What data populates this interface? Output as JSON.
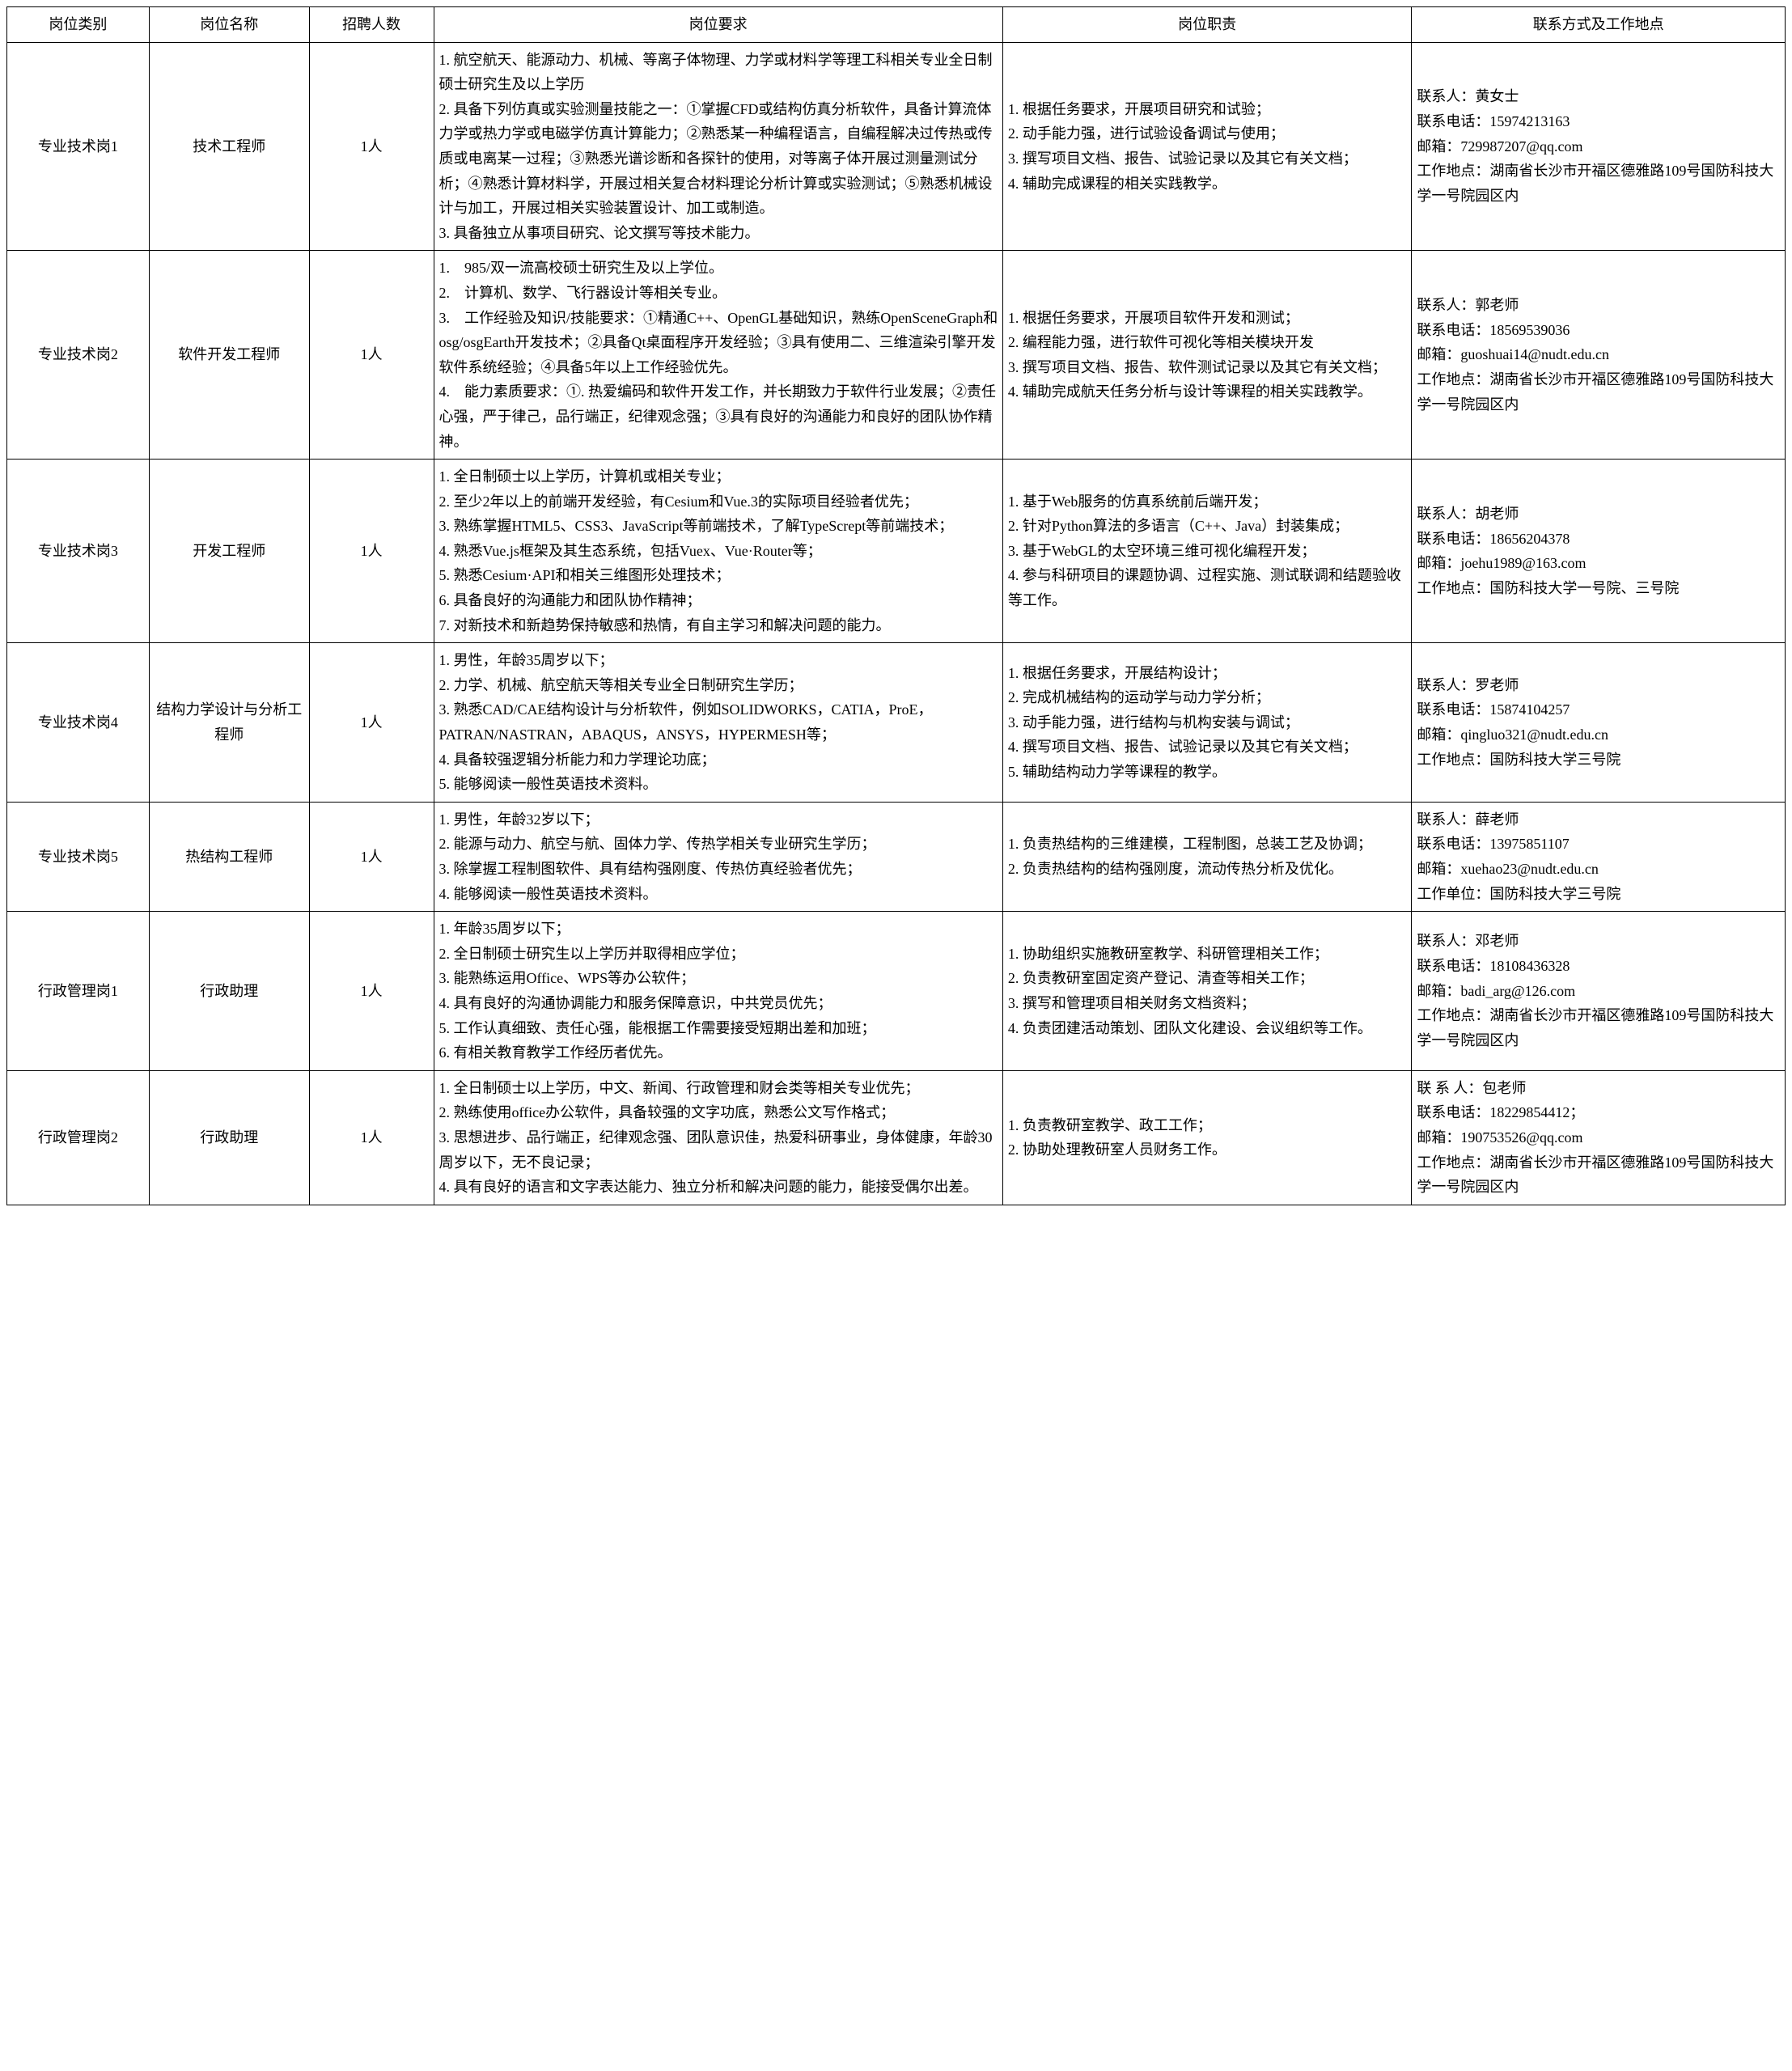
{
  "headers": [
    "岗位类别",
    "岗位名称",
    "招聘人数",
    "岗位要求",
    "岗位职责",
    "联系方式及工作地点"
  ],
  "rows": [
    {
      "category": "专业技术岗1",
      "name": "技术工程师",
      "count": "1人",
      "req": [
        "1. 航空航天、能源动力、机械、等离子体物理、力学或材料学等理工科相关专业全日制硕士研究生及以上学历",
        "2. 具备下列仿真或实验测量技能之一：①掌握CFD或结构仿真分析软件，具备计算流体力学或热力学或电磁学仿真计算能力；②熟悉某一种编程语言，自编程解决过传热或传质或电离某一过程；③熟悉光谱诊断和各探针的使用，对等离子体开展过测量测试分析；④熟悉计算材料学，开展过相关复合材料理论分析计算或实验测试；⑤熟悉机械设计与加工，开展过相关实验装置设计、加工或制造。",
        "3. 具备独立从事项目研究、论文撰写等技术能力。"
      ],
      "duty": [
        "1. 根据任务要求，开展项目研究和试验；",
        "2. 动手能力强，进行试验设备调试与使用；",
        "3. 撰写项目文档、报告、试验记录以及其它有关文档；",
        "4. 辅助完成课程的相关实践教学。"
      ],
      "contact": [
        "联系人：黄女士",
        "联系电话：15974213163",
        "邮箱：729987207@qq.com",
        "工作地点：湖南省长沙市开福区德雅路109号国防科技大学一号院园区内"
      ]
    },
    {
      "category": "专业技术岗2",
      "name": "软件开发工程师",
      "count": "1人",
      "req": [
        "1.　985/双一流高校硕士研究生及以上学位。",
        "2.　计算机、数学、飞行器设计等相关专业。",
        "3.　工作经验及知识/技能要求：①精通C++、OpenGL基础知识，熟练OpenSceneGraph和osg/osgEarth开发技术；②具备Qt桌面程序开发经验；③具有使用二、三维渲染引擎开发软件系统经验；④具备5年以上工作经验优先。",
        "4.　能力素质要求：①. 热爱编码和软件开发工作，并长期致力于软件行业发展；②责任心强，严于律己，品行端正，纪律观念强；③具有良好的沟通能力和良好的团队协作精神。"
      ],
      "duty": [
        "1. 根据任务要求，开展项目软件开发和测试；",
        "2. 编程能力强，进行软件可视化等相关模块开发",
        "3. 撰写项目文档、报告、软件测试记录以及其它有关文档；",
        "4. 辅助完成航天任务分析与设计等课程的相关实践教学。"
      ],
      "contact": [
        "联系人：郭老师",
        "联系电话：18569539036",
        "邮箱：guoshuai14@nudt.edu.cn",
        "工作地点：湖南省长沙市开福区德雅路109号国防科技大学一号院园区内"
      ]
    },
    {
      "category": "专业技术岗3",
      "name": "开发工程师",
      "count": "1人",
      "req": [
        "1. 全日制硕士以上学历，计算机或相关专业；",
        "2. 至少2年以上的前端开发经验，有Cesium和Vue.3的实际项目经验者优先；",
        "3. 熟练掌握HTML5、CSS3、JavaScript等前端技术，了解TypeScrept等前端技术；",
        "4. 熟悉Vue.js框架及其生态系统，包括Vuex、Vue·Router等；",
        "5. 熟悉Cesium·API和相关三维图形处理技术；",
        "6. 具备良好的沟通能力和团队协作精神；",
        "7. 对新技术和新趋势保持敏感和热情，有自主学习和解决问题的能力。"
      ],
      "duty": [
        "1. 基于Web服务的仿真系统前后端开发；",
        "2. 针对Python算法的多语言（C++、Java）封装集成；",
        "3. 基于WebGL的太空环境三维可视化编程开发；",
        "4. 参与科研项目的课题协调、过程实施、测试联调和结题验收等工作。"
      ],
      "contact": [
        "联系人：胡老师",
        "联系电话：18656204378",
        "邮箱：joehu1989@163.com",
        "工作地点：国防科技大学一号院、三号院"
      ]
    },
    {
      "category": "专业技术岗4",
      "name": "结构力学设计与分析工程师",
      "count": "1人",
      "req": [
        "1. 男性，年龄35周岁以下；",
        "2. 力学、机械、航空航天等相关专业全日制研究生学历；",
        "3. 熟悉CAD/CAE结构设计与分析软件，例如SOLIDWORKS，CATIA，ProE，PATRAN/NASTRAN，ABAQUS，ANSYS，HYPERMESH等；",
        "4. 具备较强逻辑分析能力和力学理论功底；",
        "5. 能够阅读一般性英语技术资料。"
      ],
      "duty": [
        "1. 根据任务要求，开展结构设计；",
        "2. 完成机械结构的运动学与动力学分析；",
        "3. 动手能力强，进行结构与机构安装与调试；",
        "4. 撰写项目文档、报告、试验记录以及其它有关文档；",
        "5. 辅助结构动力学等课程的教学。"
      ],
      "contact": [
        "联系人：罗老师",
        "联系电话：15874104257",
        "邮箱：qingluo321@nudt.edu.cn",
        "工作地点：国防科技大学三号院"
      ]
    },
    {
      "category": "专业技术岗5",
      "name": "热结构工程师",
      "count": "1人",
      "req": [
        "1. 男性，年龄32岁以下；",
        "2. 能源与动力、航空与航、固体力学、传热学相关专业研究生学历；",
        "3. 除掌握工程制图软件、具有结构强刚度、传热仿真经验者优先；",
        "4. 能够阅读一般性英语技术资料。"
      ],
      "duty": [
        "1. 负责热结构的三维建模，工程制图，总装工艺及协调；",
        "2. 负责热结构的结构强刚度，流动传热分析及优化。"
      ],
      "contact": [
        "联系人：薛老师",
        "联系电话：13975851107",
        "邮箱：xuehao23@nudt.edu.cn",
        "工作单位：国防科技大学三号院"
      ]
    },
    {
      "category": "行政管理岗1",
      "name": "行政助理",
      "count": "1人",
      "req": [
        "1. 年龄35周岁以下；",
        "2. 全日制硕士研究生以上学历并取得相应学位；",
        "3. 能熟练运用Office、WPS等办公软件；",
        "4. 具有良好的沟通协调能力和服务保障意识，中共党员优先；",
        "5. 工作认真细致、责任心强，能根据工作需要接受短期出差和加班；",
        "6. 有相关教育教学工作经历者优先。"
      ],
      "duty": [
        "1. 协助组织实施教研室教学、科研管理相关工作；",
        "2. 负责教研室固定资产登记、清查等相关工作；",
        "3. 撰写和管理项目相关财务文档资料；",
        "4. 负责团建活动策划、团队文化建设、会议组织等工作。"
      ],
      "contact": [
        "联系人：邓老师",
        "联系电话：18108436328",
        "邮箱：badi_arg@126.com",
        "工作地点：湖南省长沙市开福区德雅路109号国防科技大学一号院园区内"
      ]
    },
    {
      "category": "行政管理岗2",
      "name": "行政助理",
      "count": "1人",
      "req": [
        "1. 全日制硕士以上学历，中文、新闻、行政管理和财会类等相关专业优先；",
        "2. 熟练使用office办公软件，具备较强的文字功底，熟悉公文写作格式；",
        "3. 思想进步、品行端正，纪律观念强、团队意识佳，热爱科研事业，身体健康，年龄30周岁以下，无不良记录；",
        "4. 具有良好的语言和文字表达能力、独立分析和解决问题的能力，能接受偶尔出差。"
      ],
      "duty": [
        "1. 负责教研室教学、政工工作；",
        "2. 协助处理教研室人员财务工作。"
      ],
      "contact": [
        "联 系 人：包老师",
        "联系电话：18229854412；",
        "邮箱：190753526@qq.com",
        "工作地点：湖南省长沙市开福区德雅路109号国防科技大学一号院园区内"
      ]
    }
  ]
}
